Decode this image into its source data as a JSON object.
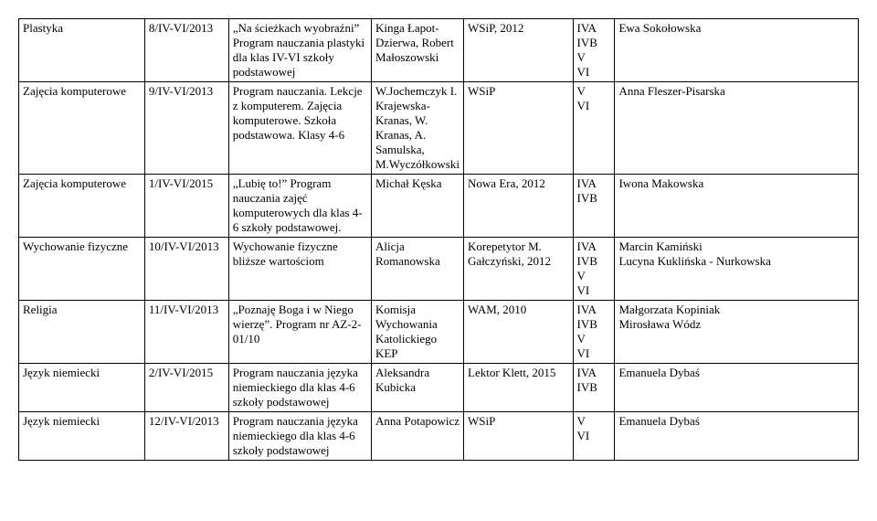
{
  "table": {
    "rows": [
      {
        "subject": "Plastyka",
        "code": "8/IV-VI/2013",
        "program": "„Na ścieżkach wyobraźni” Program nauczania plastyki dla klas IV-VI szkoły podstawowej",
        "authors": "Kinga Łapot-Dzierwa, Robert Małoszowski",
        "publisher": "WSiP, 2012",
        "groups": "IVA\nIVB\nV\nVI",
        "teacher": "Ewa Sokołowska"
      },
      {
        "subject": "Zajęcia komputerowe",
        "code": "9/IV-VI/2013",
        "program": "Program nauczania. Lekcje z komputerem. Zajęcia komputerowe. Szkoła podstawowa. Klasy 4-6",
        "authors": "W.Jochemczyk I. Krajewska-Kranas, W. Kranas, A. Samulska, M.Wyczółkowski",
        "publisher": "WSiP",
        "groups": "V\nVI",
        "teacher": "Anna Fleszer-Pisarska"
      },
      {
        "subject": "Zajęcia komputerowe",
        "code": "1/IV-VI/2015",
        "program": "„Lubię to!” Program nauczania zajęć komputerowych dla klas 4-6 szkoły podstawowej.",
        "authors": "Michał Kęska",
        "publisher": "Nowa Era, 2012",
        "groups": "IVA\nIVB",
        "teacher": "Iwona Makowska"
      },
      {
        "subject": "Wychowanie fizyczne",
        "code": "10/IV-VI/2013",
        "program": "Wychowanie fizyczne bliższe wartościom",
        "authors": "Alicja Romanowska",
        "publisher": "Korepetytor M. Gałczyński, 2012",
        "groups": "IVA\nIVB\nV\nVI",
        "teacher": "Marcin Kamiński\nLucyna Kuklińska - Nurkowska"
      },
      {
        "subject": "Religia",
        "code": "11/IV-VI/2013",
        "program": "„Poznaję Boga i w Niego wierzę”. Program nr AZ-2-01/10",
        "authors": "Komisja Wychowania Katolickiego KEP",
        "publisher": "WAM, 2010",
        "groups": "IVA\nIVB\nV\nVI",
        "teacher": "Małgorzata Kopiniak\nMirosława Wódz"
      },
      {
        "subject": "Język niemiecki",
        "code": "2/IV-VI/2015",
        "program": "Program nauczania języka niemieckiego dla klas 4-6 szkoły podstawowej",
        "authors": "Aleksandra Kubicka",
        "publisher": "Lektor Klett, 2015",
        "groups": "IVA\nIVB",
        "teacher": "Emanuela Dybaś"
      },
      {
        "subject": "Język niemiecki",
        "code": "12/IV-VI/2013",
        "program": "Program nauczania języka niemieckiego dla klas 4-6 szkoły podstawowej",
        "authors": "Anna Potapowicz",
        "publisher": "WSiP",
        "groups": "V\nVI",
        "teacher": "Emanuela Dybaś"
      }
    ]
  }
}
